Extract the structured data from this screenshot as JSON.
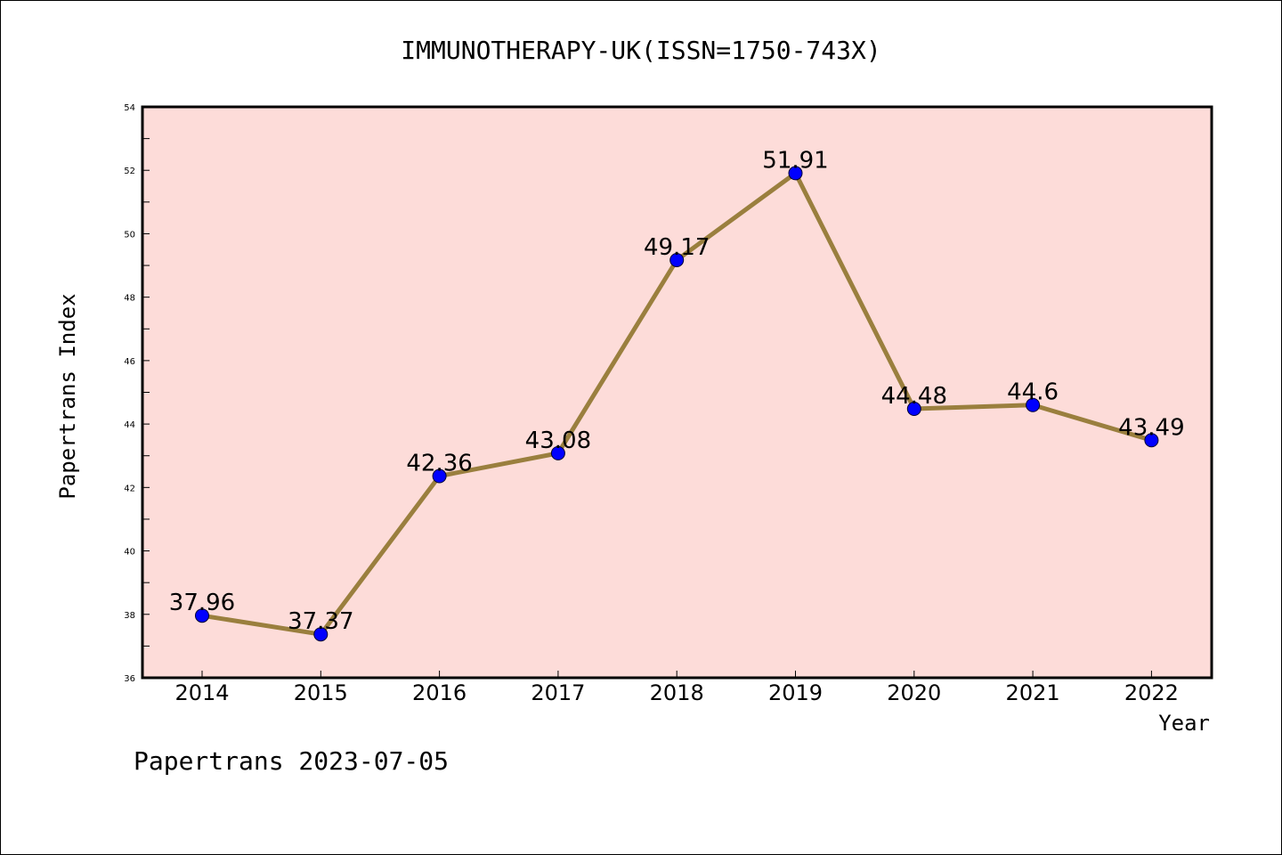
{
  "chart_data": {
    "type": "line",
    "title": "IMMUNOTHERAPY-UK(ISSN=1750-743X)",
    "xlabel": "Year",
    "ylabel": "Papertrans Index",
    "categories": [
      "2014",
      "2015",
      "2016",
      "2017",
      "2018",
      "2019",
      "2020",
      "2021",
      "2022"
    ],
    "values": [
      37.96,
      37.37,
      42.36,
      43.08,
      49.17,
      51.91,
      44.48,
      44.6,
      43.49
    ],
    "data_labels": [
      "37.96",
      "37.37",
      "42.36",
      "43.08",
      "49.17",
      "51.91",
      "44.48",
      "44.6",
      "43.49"
    ],
    "ylim": [
      36,
      54
    ],
    "yticks": [
      36,
      38,
      40,
      42,
      44,
      46,
      48,
      50,
      52,
      54
    ],
    "grid": false,
    "legend": "none",
    "colors": {
      "plot_background": "#fddcd9",
      "line": "#9a7f3e",
      "marker": "#0000ff"
    }
  },
  "footer": "Papertrans 2023-07-05"
}
